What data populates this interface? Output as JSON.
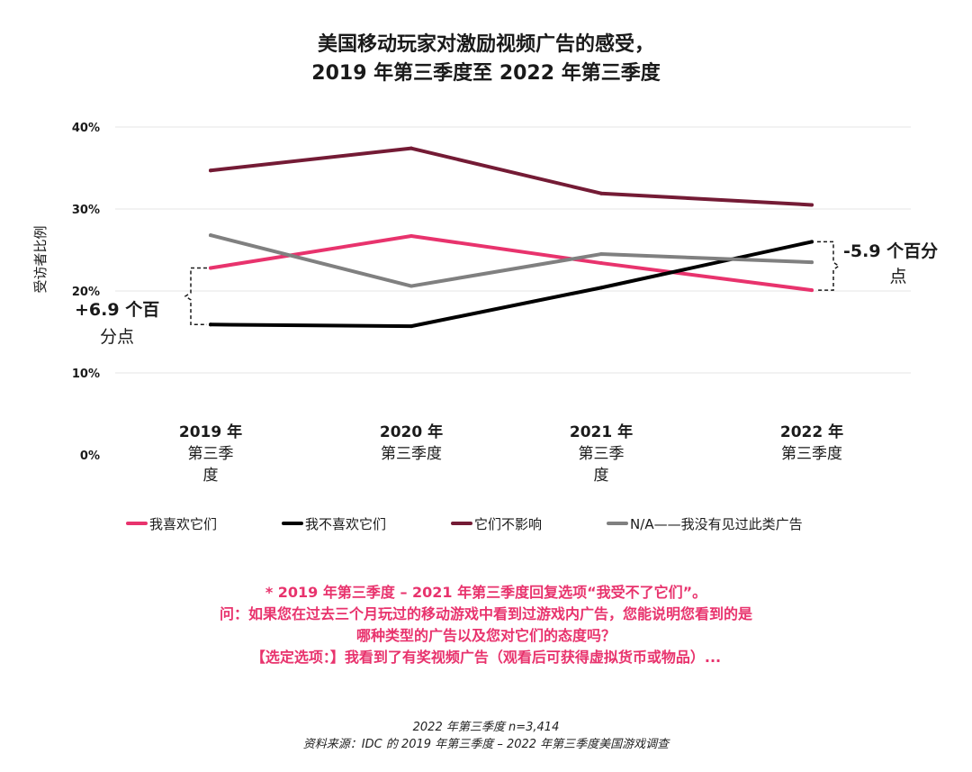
{
  "title": {
    "line1": "美国移动玩家对激励视频广告的感受，",
    "line2": "2019 年第三季度至 2022 年第三季度"
  },
  "chart_data": {
    "type": "line",
    "title": "美国移动玩家对激励视频广告的感受，2019 年第三季度至 2022 年第三季度",
    "ylabel": "受访者比例",
    "xlabel": "",
    "ylim": [
      0,
      40
    ],
    "yticks": [
      0,
      10,
      20,
      30,
      40
    ],
    "ytick_labels": [
      "0%",
      "10%",
      "20%",
      "30%",
      "40%"
    ],
    "grid": true,
    "legend_position": "bottom",
    "categories": [
      [
        "2019 年",
        "第三季",
        "度"
      ],
      [
        "2020 年",
        "第三季度"
      ],
      [
        "2021 年",
        "第三季",
        "度"
      ],
      [
        "2022 年",
        "第三季度"
      ]
    ],
    "series": [
      {
        "name": "我喜欢它们",
        "color": "#e8336d",
        "values": [
          22.8,
          26.7,
          23.4,
          20.1
        ]
      },
      {
        "name": "我不喜欢它们",
        "color": "#000000",
        "values": [
          15.9,
          15.7,
          20.4,
          26.0
        ]
      },
      {
        "name": "它们不影响",
        "color": "#741b35",
        "values": [
          34.7,
          37.4,
          31.9,
          30.5
        ]
      },
      {
        "name": "N/A——我没有见过此类广告",
        "color": "#808080",
        "values": [
          26.8,
          20.6,
          24.5,
          23.5
        ]
      }
    ],
    "annotations": [
      {
        "lines": [
          "+6.9 个百",
          "分点"
        ],
        "at_category": 0,
        "between": [
          15.9,
          22.8
        ]
      },
      {
        "lines": [
          "-5.9 个百分",
          "点"
        ],
        "at_category": 3,
        "between": [
          20.1,
          26.0
        ]
      }
    ]
  },
  "note": {
    "line1": "* 2019 年第三季度 – 2021 年第三季度回复选项“我受不了它们”。",
    "line2": "问：如果您在过去三个月玩过的移动游戏中看到过游戏内广告，您能说明您看到的是",
    "line3": "哪种类型的广告以及您对它们的态度吗？",
    "line4": "【选定选项：】我看到了有奖视频广告（观看后可获得虚拟货币或物品）..."
  },
  "source": {
    "line1": "2022 年第三季度 n=3,414",
    "line2": "资料来源：IDC 的 2019 年第三季度 – 2022 年第三季度美国游戏调查"
  }
}
